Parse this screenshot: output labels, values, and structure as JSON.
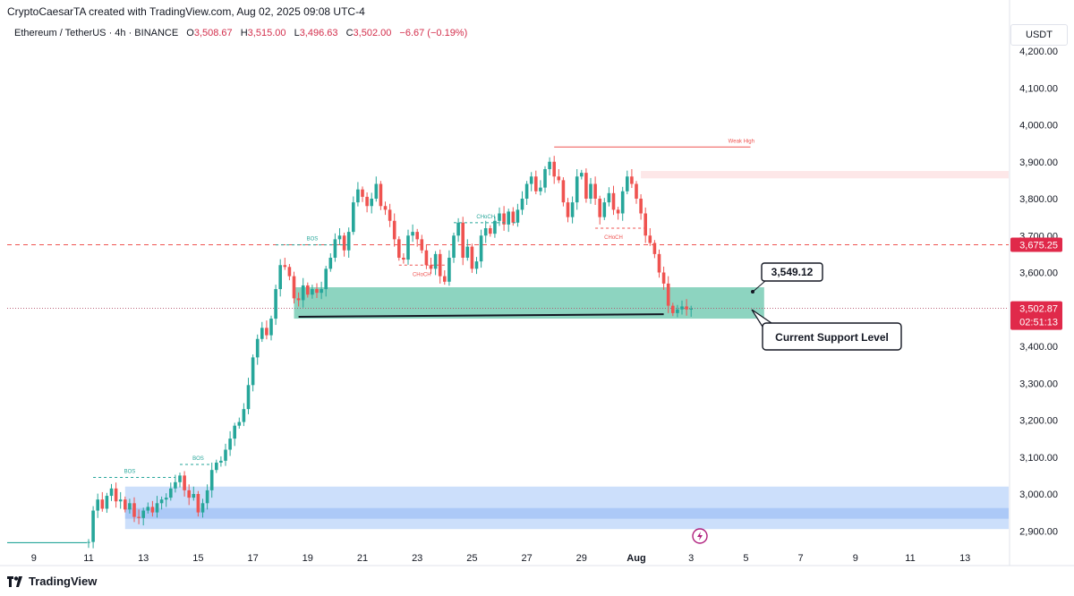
{
  "header": {
    "credit": "CryptoCaesarTA created with TradingView.com, Aug 02, 2025 09:08 UTC-4",
    "symbol": "Ethereum / TetherUS · 4h · BINANCE",
    "o_label": "O",
    "o_value": "3,508.67",
    "h_label": "H",
    "h_value": "3,515.00",
    "l_label": "L",
    "l_value": "3,496.63",
    "c_label": "C",
    "c_value": "3,502.00",
    "change": "−6.67 (−0.19%)",
    "currency": "USDT"
  },
  "footer": {
    "brand": "TradingView"
  },
  "colors": {
    "up": "#26a69a",
    "down": "#ef5350",
    "zone": "#81cfb9",
    "demand": "#c7dcfb",
    "supply": "#fde4e6",
    "accent": "#e0294a"
  },
  "chart_data": {
    "type": "candlestick",
    "title": "Ethereum / TetherUS · 4h · BINANCE",
    "y_axis": {
      "min": 2880,
      "max": 4220,
      "ticks": [
        "4,200.00",
        "4,100.00",
        "4,000.00",
        "3,900.00",
        "3,800.00",
        "3,700.00",
        "3,600.00",
        "3,500.00",
        "3,400.00",
        "3,300.00",
        "3,200.00",
        "3,100.00",
        "3,000.00",
        "2,900.00"
      ],
      "tick_values": [
        4200,
        4100,
        4000,
        3900,
        3800,
        3700,
        3600,
        3500,
        3400,
        3300,
        3200,
        3100,
        3000,
        2900
      ]
    },
    "x_axis": {
      "ticks": [
        "9",
        "11",
        "13",
        "15",
        "17",
        "19",
        "21",
        "23",
        "25",
        "27",
        "29",
        "Aug",
        "3",
        "5",
        "7",
        "9",
        "11",
        "13"
      ],
      "tick_index": [
        -12,
        0,
        12,
        24,
        36,
        48,
        60,
        72,
        84,
        96,
        108,
        120,
        132,
        144,
        156,
        168,
        180,
        192
      ]
    },
    "price_labels": [
      {
        "text": "3,675.25",
        "price": 3675.25,
        "style": "dashed"
      },
      {
        "text": "3,502.87",
        "price": 3502.87,
        "countdown": "02:51:13",
        "style": "dotted"
      }
    ],
    "zones": [
      {
        "name": "current-support-zone",
        "from_i": 45,
        "to_i": 148,
        "low": 3475,
        "high": 3560,
        "color": "#81cfb9"
      },
      {
        "name": "demand-zone-outer",
        "from_i": 8,
        "to_i": 204,
        "low": 2905,
        "high": 3020,
        "color": "#c7dcfb"
      },
      {
        "name": "demand-zone-inner",
        "from_i": 8,
        "to_i": 204,
        "low": 2933,
        "high": 2962,
        "color": "#a9c7f6"
      },
      {
        "name": "supply-zone",
        "from_i": 121,
        "to_i": 204,
        "low": 3855,
        "high": 3875,
        "color": "#fde4e6"
      }
    ],
    "annotations": [
      {
        "text": "BOS",
        "i": 1,
        "price": 3045,
        "to_i": 19,
        "label_i": 9,
        "color": "#26a69a"
      },
      {
        "text": "BOS",
        "i": 20,
        "price": 3080,
        "to_i": 27,
        "label_i": 24,
        "color": "#26a69a"
      },
      {
        "text": "BOS",
        "i": 41,
        "price": 3675,
        "to_i": 57,
        "label_i": 49,
        "color": "#26a69a"
      },
      {
        "text": "CHoCH",
        "i": 80,
        "price": 3735,
        "to_i": 94,
        "label_i": 87,
        "color": "#26a69a"
      },
      {
        "text": "CHoCH",
        "i": 68,
        "price": 3620,
        "to_i": 78,
        "label_i": 73,
        "color": "#ef5350"
      },
      {
        "text": "CHoCH",
        "i": 111,
        "price": 3720,
        "to_i": 122,
        "label_i": 115,
        "color": "#ef5350"
      },
      {
        "text": "Weak High",
        "i": 102,
        "price": 3940,
        "to_i": 145,
        "label_i": 143,
        "color": "#ef5350"
      }
    ],
    "support_line": {
      "from_i": 46,
      "to_i": 126,
      "price": 3480,
      "price_end": 3487
    },
    "callouts": [
      {
        "text": "3,549.12",
        "price": 3549.12
      },
      {
        "text": "Current Support Level"
      }
    ],
    "open": 2868,
    "closes": [
      2870,
      2955,
      2985,
      2960,
      2995,
      3015,
      2980,
      2985,
      2958,
      2975,
      2938,
      2935,
      2955,
      2965,
      2950,
      2975,
      2985,
      2990,
      3015,
      3032,
      3050,
      3010,
      2990,
      3000,
      2950,
      2975,
      3010,
      3065,
      3085,
      3090,
      3120,
      3150,
      3185,
      3195,
      3230,
      3295,
      3370,
      3420,
      3450,
      3430,
      3475,
      3555,
      3620,
      3615,
      3590,
      3530,
      3525,
      3565,
      3540,
      3555,
      3545,
      3555,
      3610,
      3640,
      3690,
      3700,
      3660,
      3710,
      3790,
      3825,
      3805,
      3780,
      3800,
      3840,
      3780,
      3770,
      3740,
      3690,
      3640,
      3635,
      3700,
      3710,
      3690,
      3660,
      3620,
      3610,
      3650,
      3590,
      3575,
      3640,
      3700,
      3735,
      3640,
      3670,
      3610,
      3630,
      3700,
      3720,
      3705,
      3740,
      3760,
      3730,
      3765,
      3735,
      3770,
      3800,
      3840,
      3860,
      3820,
      3830,
      3880,
      3900,
      3860,
      3850,
      3790,
      3750,
      3790,
      3860,
      3870,
      3800,
      3840,
      3800,
      3750,
      3790,
      3815,
      3770,
      3760,
      3820,
      3860,
      3840,
      3800,
      3760,
      3700,
      3680,
      3650,
      3600,
      3570,
      3510,
      3490,
      3500,
      3508,
      3500,
      3502
    ]
  }
}
